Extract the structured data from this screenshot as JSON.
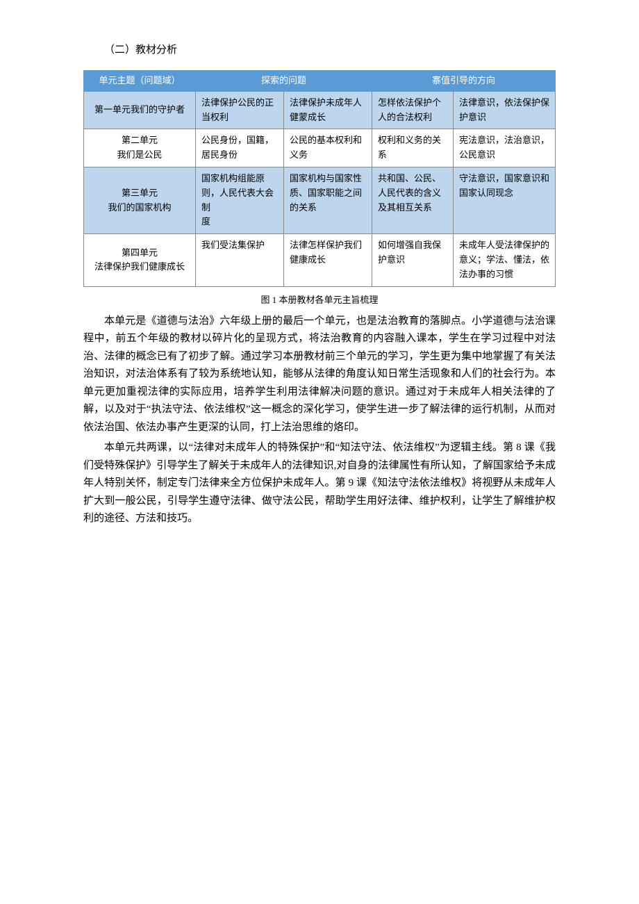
{
  "section_title": "（二）教材分析",
  "table": {
    "header_bg": "#5b9bd5",
    "header_fg": "#ffffff",
    "alt_bg": "#bdd6ee",
    "border_color": "#888888",
    "header": {
      "c1": "单元主题（问题域）",
      "c2": "探索的问题",
      "c3": "寨值引导的方向"
    },
    "rows": [
      {
        "unit": "第一单元我们的守护者",
        "a": "法律保护公民的正当权利",
        "b": "法律保护未成年人健蒙成长",
        "c": "怎样依法保护个人的合法权利",
        "d": "法律意识，依法保护保护意识",
        "alt": true
      },
      {
        "unit": "第二单元\n我们是公民",
        "a": "公民身份，国籍，居民身份",
        "b": "公民的基本权利和义务",
        "c": "权利和义务的关系",
        "d": "宪法意识，法治意识，公民意识",
        "alt": false
      },
      {
        "unit": "第三单元\n我们的国家机构",
        "a": "国家机构组能原则，人民代表大会制\n度",
        "b": "国家机构与国家性质、国家职能之间的关系",
        "c": "共和国、公民、人民代表的含义及其相互关系",
        "d": "守法意识，国家意识和国家认同现念",
        "alt": true
      },
      {
        "unit": "第四单元\n法律保护我们健康成长",
        "a": "我们受法集保护",
        "b": "法律怎样保护我们健康成长",
        "c": "如何增强⾃我保护意识",
        "d": "未成年人受法律保护的意义；学法、懂法，依法办事的习惯",
        "alt": false
      }
    ]
  },
  "caption": "图 1 本册教材各单元主旨梳理",
  "paragraphs": [
    "本单元是《道德与法治》六年级上册的最后一个单元，也是法治教育的落脚点。小学道德与法治课程中，前五个年级的教材以碎片化的呈现方式，将法治教育的内容融入课本，学生在学习过程中对法治、法律的概念已有了初步了解。通过学习本册教材前三个单元的学习，学生更为集中地掌握了有关法治知识，对法治体系有了较为系统地认知，能够从法律的角度认知日常生活现象和人们的社会行为。本单元更加重视法律的实际应用，培养学生利用法律解决问题的意识。通过对于未成年人相关法律的了解，以及对于“执法守法、依法维权”这一概念的深化学习，使学生进一步了解法律的运行机制，从而对依法治国、依法办事产生更深的认同，打上法治思维的烙印。",
    "本单元共两课，以“法律对未成年人的特殊保护”和“知法守法、依法维权”为逻辑主线。第 8 课《我们受特殊保护》引导学生了解关于未成年人的法律知识,对自身的法律属性有所认知，了解国家给予未成年人特别关怀，制定专门法律来全方位保护未成年人。第 9 课《知法守法依法维权》将视野从未成年人扩大到一般公民，引导学生遵守法律、做守法公民，帮助学生用好法律、维护权利，让学生了解维护权利的途径、方法和技巧。"
  ]
}
